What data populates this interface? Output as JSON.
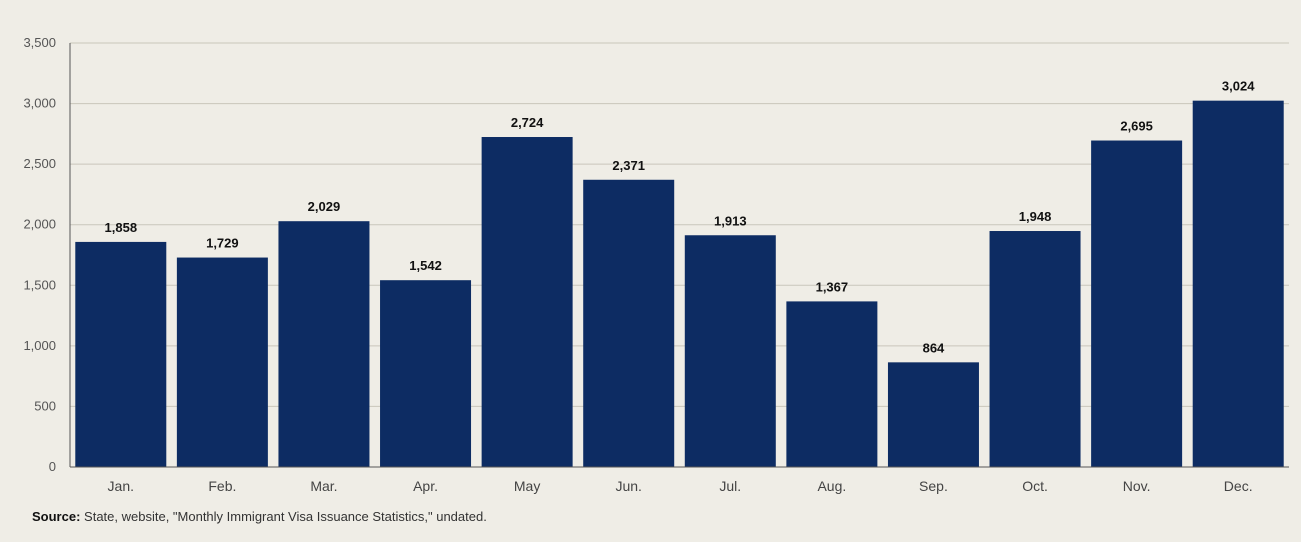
{
  "chart_data": {
    "type": "bar",
    "title": "",
    "xlabel": "",
    "ylabel": "",
    "categories": [
      "Jan.",
      "Feb.",
      "Mar.",
      "Apr.",
      "May",
      "Jun.",
      "Jul.",
      "Aug.",
      "Sep.",
      "Oct.",
      "Nov.",
      "Dec."
    ],
    "values": [
      1858,
      1729,
      2029,
      1542,
      2724,
      2371,
      1913,
      1367,
      864,
      1948,
      2695,
      3024
    ],
    "data_labels": [
      "1,858",
      "1,729",
      "2,029",
      "1,542",
      "2,724",
      "2,371",
      "1,913",
      "1,367",
      "864",
      "1,948",
      "2,695",
      "3,024"
    ],
    "ylim": [
      0,
      3500
    ],
    "yticks": [
      0,
      500,
      1000,
      1500,
      2000,
      2500,
      3000,
      3500
    ],
    "ytick_labels": [
      "0",
      "500",
      "1,000",
      "1,500",
      "2,000",
      "2,500",
      "3,000",
      "3,500"
    ],
    "grid": true,
    "legend": "none",
    "bar_color": "#0d2c63",
    "gridline_color": "#c9c6bb",
    "background_color": "#efede6"
  },
  "source": {
    "label": "Source:",
    "text": "State, website, \"Monthly Immigrant Visa Issuance Statistics,\" undated."
  }
}
